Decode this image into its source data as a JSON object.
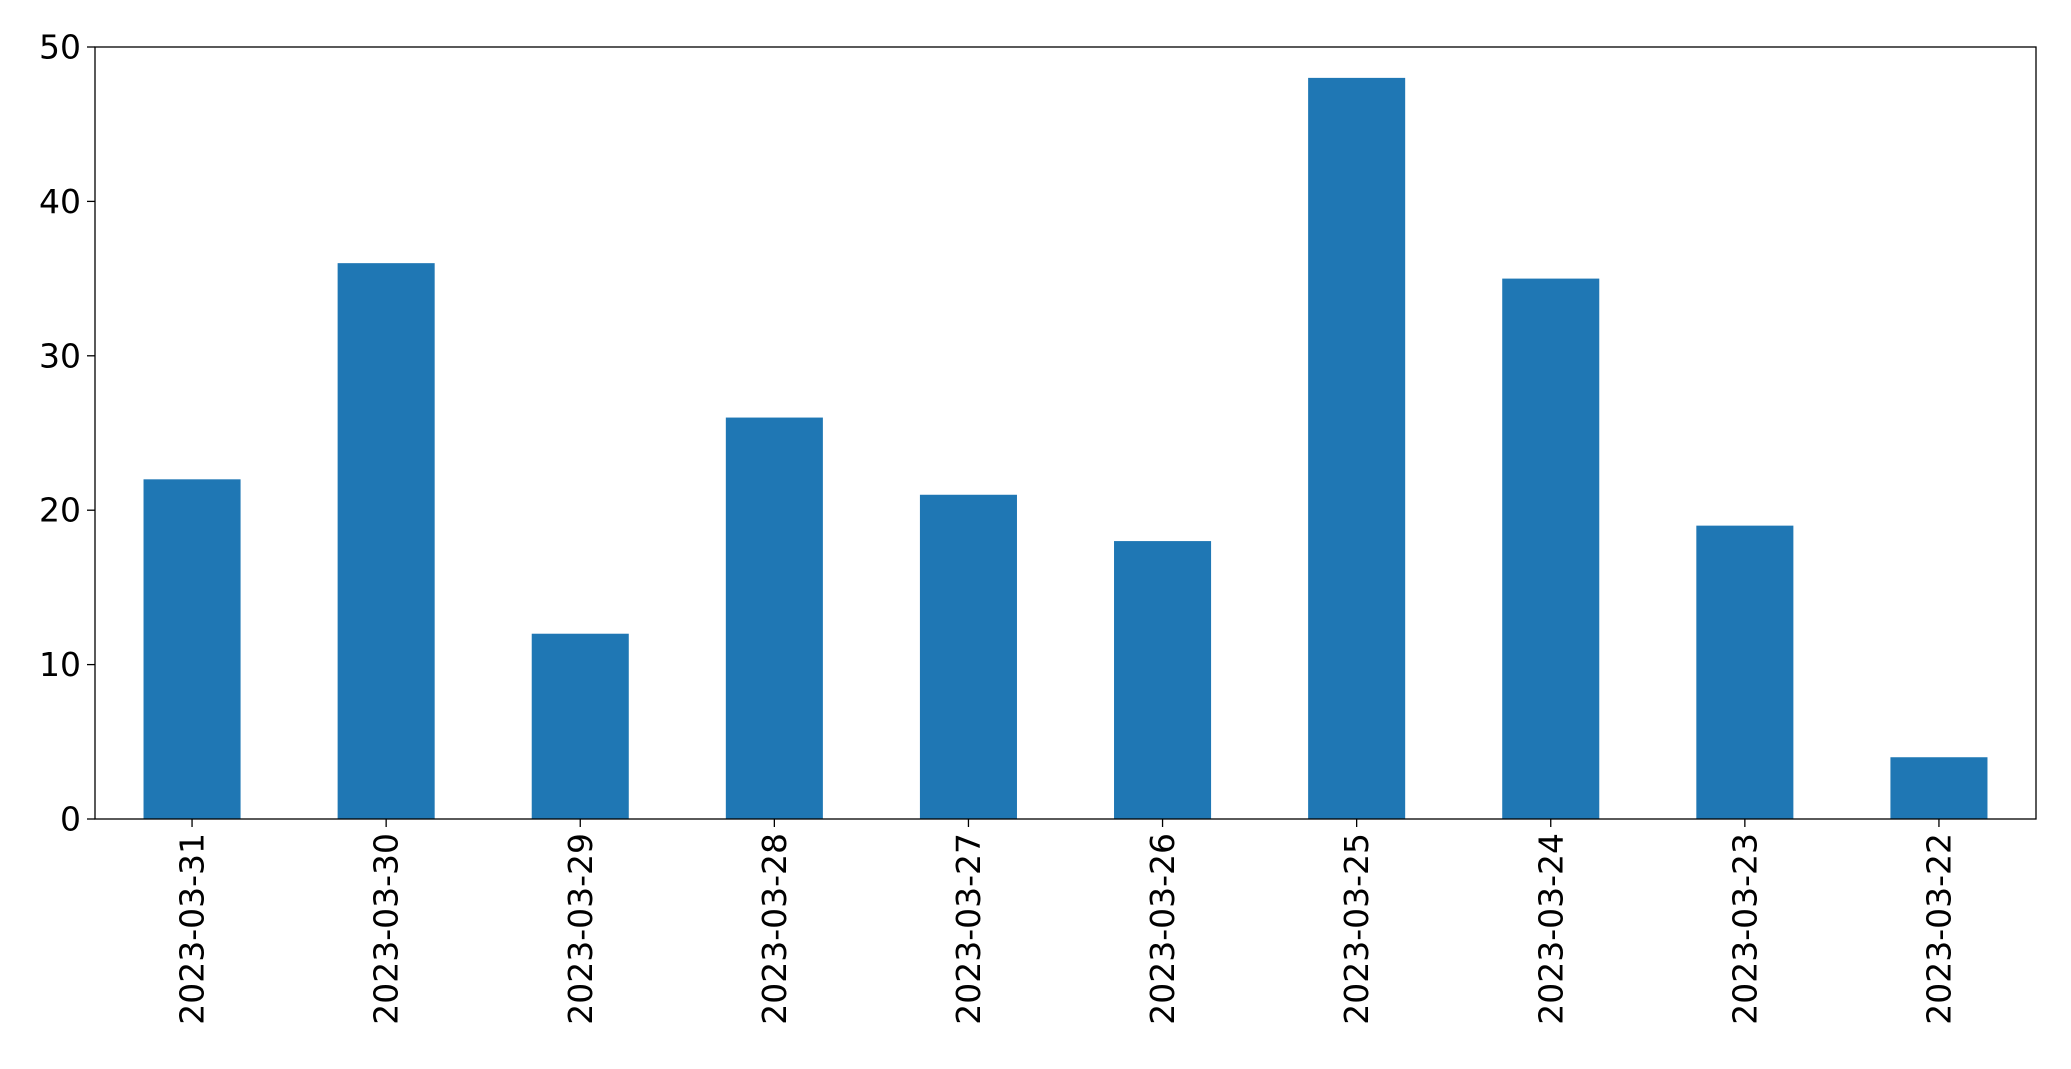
{
  "chart_data": {
    "type": "bar",
    "categories": [
      "2023-03-31",
      "2023-03-30",
      "2023-03-29",
      "2023-03-28",
      "2023-03-27",
      "2023-03-26",
      "2023-03-25",
      "2023-03-24",
      "2023-03-23",
      "2023-03-22"
    ],
    "values": [
      22,
      36,
      12,
      26,
      21,
      18,
      48,
      35,
      19,
      4
    ],
    "title": "",
    "xlabel": "",
    "ylabel": "",
    "ylim": [
      0,
      50
    ],
    "yticks": [
      0,
      10,
      20,
      30,
      40,
      50
    ],
    "xtick_rotation": "vertical",
    "grid": false,
    "legend": "none",
    "bar_color": "#1f77b4"
  }
}
